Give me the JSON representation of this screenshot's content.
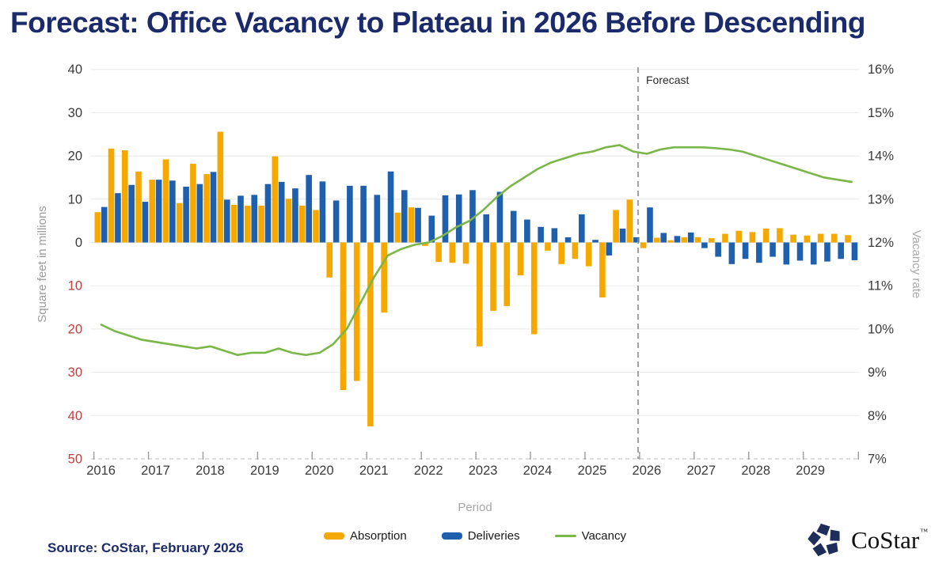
{
  "title": "Forecast: Office Vacancy to Plateau in 2026 Before Descending",
  "source": "Source: CoStar, February 2026",
  "logo": {
    "text": "CoStar",
    "tm": "™"
  },
  "legend": [
    {
      "label": "Absorption",
      "type": "bar",
      "color": "#F5A800"
    },
    {
      "label": "Deliveries",
      "type": "bar",
      "color": "#1E5FAE"
    },
    {
      "label": "Vacancy",
      "type": "line",
      "color": "#7AB648"
    }
  ],
  "chart_data": {
    "type": "bar+line",
    "x_unit": "quarter",
    "years": [
      "2016",
      "2017",
      "2018",
      "2019",
      "2020",
      "2021",
      "2022",
      "2023",
      "2024",
      "2025",
      "2026",
      "2027",
      "2028",
      "2029"
    ],
    "series": [
      {
        "name": "Absorption",
        "type": "bar",
        "axis": "left",
        "color": "#F5A800",
        "values": [
          7.0,
          21.7,
          21.3,
          16.4,
          14.5,
          19.2,
          9.1,
          18.2,
          15.8,
          25.6,
          8.7,
          8.5,
          8.5,
          19.9,
          10.1,
          8.5,
          7.5,
          -8.1,
          -34.1,
          -32.0,
          -42.5,
          -16.2,
          6.9,
          8.1,
          -0.8,
          -4.5,
          -4.7,
          -4.9,
          -24.0,
          -15.8,
          -14.7,
          -7.6,
          -21.2,
          -1.9,
          -5.0,
          -3.8,
          -5.5,
          -12.7,
          7.5,
          9.9,
          -1.3,
          1.1,
          0.5,
          1.2,
          1.2,
          1.0,
          2.0,
          2.7,
          2.4,
          3.2,
          3.3,
          1.8,
          1.6,
          2.0,
          2.0,
          1.7
        ]
      },
      {
        "name": "Deliveries",
        "type": "bar",
        "axis": "left",
        "color": "#1E5FAE",
        "values": [
          8.2,
          11.4,
          13.3,
          9.4,
          14.5,
          14.3,
          12.9,
          13.5,
          16.3,
          9.9,
          10.8,
          11.0,
          13.5,
          14.0,
          12.5,
          15.6,
          14.1,
          9.7,
          13.1,
          13.1,
          11.0,
          16.4,
          12.1,
          8.0,
          6.2,
          10.9,
          11.1,
          12.1,
          6.5,
          11.7,
          7.3,
          5.3,
          3.6,
          3.3,
          1.2,
          6.5,
          0.6,
          -3.0,
          3.2,
          1.2,
          8.1,
          2.2,
          1.5,
          2.3,
          -1.3,
          -3.3,
          -5.0,
          -3.8,
          -4.7,
          -3.3,
          -5.1,
          -4.2,
          -5.1,
          -4.4,
          -3.8,
          -4.1
        ]
      },
      {
        "name": "Vacancy",
        "type": "line",
        "axis": "right",
        "color": "#7AB648",
        "values": [
          10.1,
          9.95,
          9.85,
          9.75,
          9.7,
          9.65,
          9.6,
          9.55,
          9.6,
          9.5,
          9.4,
          9.45,
          9.45,
          9.55,
          9.45,
          9.4,
          9.45,
          9.65,
          10.0,
          10.6,
          11.2,
          11.7,
          11.85,
          11.95,
          12.0,
          12.15,
          12.35,
          12.5,
          12.75,
          13.05,
          13.3,
          13.5,
          13.7,
          13.85,
          13.95,
          14.05,
          14.1,
          14.2,
          14.25,
          14.1,
          14.05,
          14.15,
          14.2,
          14.2,
          14.2,
          14.18,
          14.15,
          14.1,
          14.0,
          13.9,
          13.8,
          13.7,
          13.6,
          13.5,
          13.45,
          13.4
        ]
      }
    ],
    "left_axis": {
      "title": "Square feet in millions",
      "ticks": [
        40,
        30,
        20,
        10,
        0,
        -10,
        -20,
        -30,
        -40,
        -50
      ],
      "display_abs": true,
      "positive_color": "#3a3a3a",
      "negative_color": "#C43D3D"
    },
    "right_axis": {
      "title": "Vacancy rate",
      "ticks": [
        "16%",
        "15%",
        "14%",
        "13%",
        "12%",
        "11%",
        "10%",
        "9%",
        "8%",
        "7%"
      ],
      "range": [
        16,
        7
      ],
      "color": "#3a3a3a"
    },
    "x_axis": {
      "title": "Period"
    },
    "forecast_marker": {
      "label": "Forecast",
      "before_quarter_index": 40
    },
    "grid": true,
    "legend_position": "bottom"
  }
}
